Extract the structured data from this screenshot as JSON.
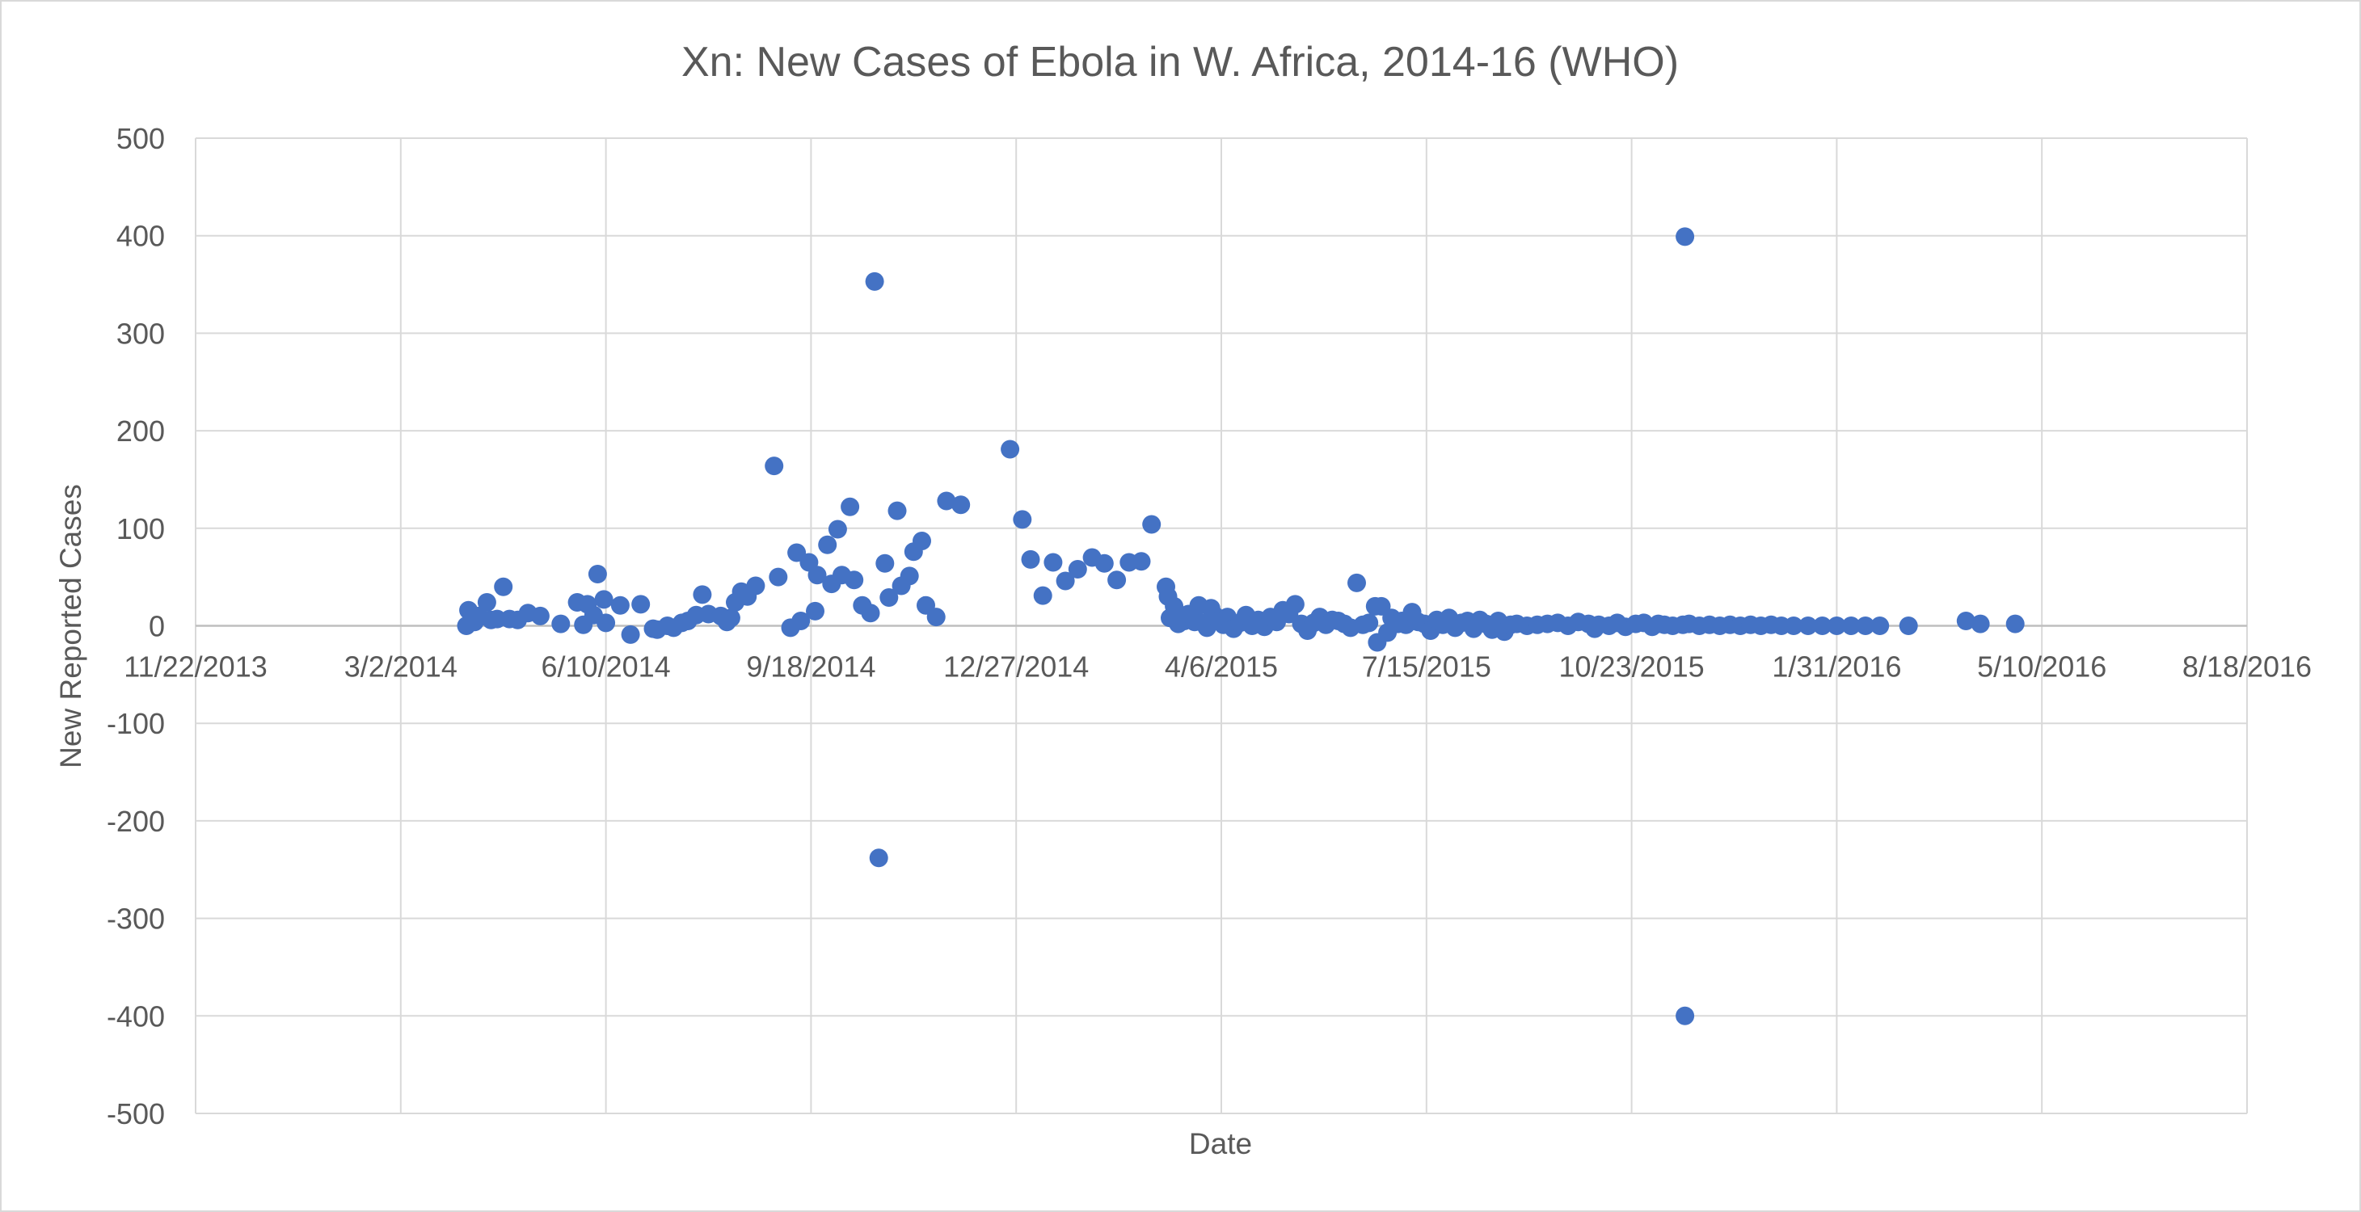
{
  "chart_data": {
    "type": "scatter",
    "title": "Xn: New Cases of Ebola in W. Africa, 2014-16 (WHO)",
    "xlabel": "Date",
    "ylabel": "New Reported Cases",
    "x_tick_labels": [
      "11/22/2013",
      "3/2/2014",
      "6/10/2014",
      "9/18/2014",
      "12/27/2014",
      "4/6/2015",
      "7/15/2015",
      "10/23/2015",
      "1/31/2016",
      "5/10/2016",
      "8/18/2016"
    ],
    "y_tick_labels": [
      "500",
      "400",
      "300",
      "200",
      "100",
      "0",
      "-100",
      "-200",
      "-300",
      "-400",
      "-500"
    ],
    "xlim": [
      "2013-11-22",
      "2016-08-18"
    ],
    "ylim": [
      -500,
      500
    ],
    "grid": true,
    "legend": "none",
    "series": [
      {
        "color": "#4472C4",
        "points": [
          [
            "2014-04-03",
            0
          ],
          [
            "2014-04-04",
            16
          ],
          [
            "2014-04-07",
            4
          ],
          [
            "2014-04-09",
            10
          ],
          [
            "2014-04-13",
            24
          ],
          [
            "2014-04-15",
            6
          ],
          [
            "2014-04-18",
            7
          ],
          [
            "2014-04-21",
            40
          ],
          [
            "2014-04-24",
            7
          ],
          [
            "2014-04-28",
            6
          ],
          [
            "2014-05-03",
            13
          ],
          [
            "2014-05-09",
            10
          ],
          [
            "2014-05-19",
            2
          ],
          [
            "2014-05-27",
            24
          ],
          [
            "2014-05-30",
            1
          ],
          [
            "2014-06-01",
            22
          ],
          [
            "2014-06-04",
            11
          ],
          [
            "2014-06-06",
            53
          ],
          [
            "2014-06-09",
            27
          ],
          [
            "2014-06-10",
            3
          ],
          [
            "2014-06-17",
            21
          ],
          [
            "2014-06-22",
            -9
          ],
          [
            "2014-06-27",
            22
          ],
          [
            "2014-07-03",
            -3
          ],
          [
            "2014-07-05",
            -4
          ],
          [
            "2014-07-10",
            0
          ],
          [
            "2014-07-13",
            -2
          ],
          [
            "2014-07-17",
            3
          ],
          [
            "2014-07-20",
            5
          ],
          [
            "2014-07-24",
            11
          ],
          [
            "2014-07-27",
            32
          ],
          [
            "2014-07-30",
            12
          ],
          [
            "2014-08-05",
            10
          ],
          [
            "2014-08-08",
            4
          ],
          [
            "2014-08-10",
            8
          ],
          [
            "2014-08-12",
            24
          ],
          [
            "2014-08-15",
            35
          ],
          [
            "2014-08-18",
            30
          ],
          [
            "2014-08-22",
            41
          ],
          [
            "2014-08-31",
            164
          ],
          [
            "2014-09-02",
            50
          ],
          [
            "2014-09-08",
            -2
          ],
          [
            "2014-09-11",
            75
          ],
          [
            "2014-09-13",
            5
          ],
          [
            "2014-09-17",
            65
          ],
          [
            "2014-09-20",
            15
          ],
          [
            "2014-09-21",
            52
          ],
          [
            "2014-09-26",
            83
          ],
          [
            "2014-09-28",
            43
          ],
          [
            "2014-10-01",
            99
          ],
          [
            "2014-10-03",
            52
          ],
          [
            "2014-10-07",
            122
          ],
          [
            "2014-10-09",
            47
          ],
          [
            "2014-10-13",
            21
          ],
          [
            "2014-10-17",
            13
          ],
          [
            "2014-10-19",
            353
          ],
          [
            "2014-10-21",
            -238
          ],
          [
            "2014-10-24",
            64
          ],
          [
            "2014-10-26",
            29
          ],
          [
            "2014-10-30",
            118
          ],
          [
            "2014-11-01",
            41
          ],
          [
            "2014-11-05",
            51
          ],
          [
            "2014-11-07",
            76
          ],
          [
            "2014-11-11",
            87
          ],
          [
            "2014-11-13",
            21
          ],
          [
            "2014-11-18",
            9
          ],
          [
            "2014-11-23",
            128
          ],
          [
            "2014-11-30",
            124
          ],
          [
            "2014-12-24",
            181
          ],
          [
            "2014-12-30",
            109
          ],
          [
            "2015-01-03",
            68
          ],
          [
            "2015-01-09",
            31
          ],
          [
            "2015-01-14",
            65
          ],
          [
            "2015-01-20",
            46
          ],
          [
            "2015-01-26",
            58
          ],
          [
            "2015-02-02",
            70
          ],
          [
            "2015-02-08",
            64
          ],
          [
            "2015-02-14",
            47
          ],
          [
            "2015-02-20",
            65
          ],
          [
            "2015-02-26",
            66
          ],
          [
            "2015-03-03",
            104
          ],
          [
            "2015-03-10",
            40
          ],
          [
            "2015-03-11",
            30
          ],
          [
            "2015-03-12",
            8
          ],
          [
            "2015-03-14",
            20
          ],
          [
            "2015-03-16",
            2
          ],
          [
            "2015-03-19",
            5
          ],
          [
            "2015-03-21",
            12
          ],
          [
            "2015-03-24",
            4
          ],
          [
            "2015-03-26",
            21
          ],
          [
            "2015-03-28",
            3
          ],
          [
            "2015-03-30",
            -2
          ],
          [
            "2015-04-01",
            18
          ],
          [
            "2015-04-03",
            10
          ],
          [
            "2015-04-05",
            5
          ],
          [
            "2015-04-07",
            1
          ],
          [
            "2015-04-09",
            9
          ],
          [
            "2015-04-12",
            -3
          ],
          [
            "2015-04-15",
            3
          ],
          [
            "2015-04-18",
            11
          ],
          [
            "2015-04-21",
            0
          ],
          [
            "2015-04-24",
            6
          ],
          [
            "2015-04-27",
            -1
          ],
          [
            "2015-04-30",
            9
          ],
          [
            "2015-05-03",
            4
          ],
          [
            "2015-05-06",
            16
          ],
          [
            "2015-05-09",
            12
          ],
          [
            "2015-05-12",
            22
          ],
          [
            "2015-05-15",
            2
          ],
          [
            "2015-05-18",
            -5
          ],
          [
            "2015-05-21",
            3
          ],
          [
            "2015-05-24",
            9
          ],
          [
            "2015-05-27",
            1
          ],
          [
            "2015-05-30",
            6
          ],
          [
            "2015-06-02",
            5
          ],
          [
            "2015-06-05",
            2
          ],
          [
            "2015-06-08",
            -2
          ],
          [
            "2015-06-11",
            44
          ],
          [
            "2015-06-14",
            1
          ],
          [
            "2015-06-17",
            3
          ],
          [
            "2015-06-20",
            20
          ],
          [
            "2015-06-21",
            -17
          ],
          [
            "2015-06-23",
            20
          ],
          [
            "2015-06-26",
            -7
          ],
          [
            "2015-06-28",
            8
          ],
          [
            "2015-07-01",
            2
          ],
          [
            "2015-07-03",
            5
          ],
          [
            "2015-07-05",
            1
          ],
          [
            "2015-07-08",
            14
          ],
          [
            "2015-07-11",
            4
          ],
          [
            "2015-07-14",
            2
          ],
          [
            "2015-07-17",
            -5
          ],
          [
            "2015-07-20",
            6
          ],
          [
            "2015-07-23",
            1
          ],
          [
            "2015-07-26",
            8
          ],
          [
            "2015-07-29",
            -2
          ],
          [
            "2015-08-01",
            3
          ],
          [
            "2015-08-04",
            5
          ],
          [
            "2015-08-07",
            -3
          ],
          [
            "2015-08-10",
            6
          ],
          [
            "2015-08-13",
            2
          ],
          [
            "2015-08-16",
            -4
          ],
          [
            "2015-08-19",
            5
          ],
          [
            "2015-08-22",
            -6
          ],
          [
            "2015-08-25",
            1
          ],
          [
            "2015-08-28",
            2
          ],
          [
            "2015-09-02",
            0
          ],
          [
            "2015-09-07",
            1
          ],
          [
            "2015-09-12",
            2
          ],
          [
            "2015-09-17",
            3
          ],
          [
            "2015-09-22",
            0
          ],
          [
            "2015-09-27",
            4
          ],
          [
            "2015-10-02",
            2
          ],
          [
            "2015-10-05",
            -3
          ],
          [
            "2015-10-07",
            1
          ],
          [
            "2015-10-12",
            0
          ],
          [
            "2015-10-16",
            3
          ],
          [
            "2015-10-20",
            -1
          ],
          [
            "2015-10-25",
            2
          ],
          [
            "2015-10-29",
            3
          ],
          [
            "2015-11-02",
            -1
          ],
          [
            "2015-11-05",
            2
          ],
          [
            "2015-11-08",
            1
          ],
          [
            "2015-11-12",
            0
          ],
          [
            "2015-11-17",
            1
          ],
          [
            "2015-11-18",
            -400
          ],
          [
            "2015-11-18",
            399
          ],
          [
            "2015-11-20",
            2
          ],
          [
            "2015-11-25",
            0
          ],
          [
            "2015-11-30",
            1
          ],
          [
            "2015-12-05",
            0
          ],
          [
            "2015-12-10",
            1
          ],
          [
            "2015-12-15",
            0
          ],
          [
            "2015-12-20",
            1
          ],
          [
            "2015-12-25",
            0
          ],
          [
            "2015-12-30",
            1
          ],
          [
            "2016-01-04",
            0
          ],
          [
            "2016-01-10",
            0
          ],
          [
            "2016-01-17",
            0
          ],
          [
            "2016-01-24",
            0
          ],
          [
            "2016-01-31",
            0
          ],
          [
            "2016-02-07",
            0
          ],
          [
            "2016-02-14",
            0
          ],
          [
            "2016-02-21",
            0
          ],
          [
            "2016-03-06",
            0
          ],
          [
            "2016-04-03",
            5
          ],
          [
            "2016-04-10",
            2
          ],
          [
            "2016-04-27",
            2
          ]
        ]
      }
    ]
  }
}
